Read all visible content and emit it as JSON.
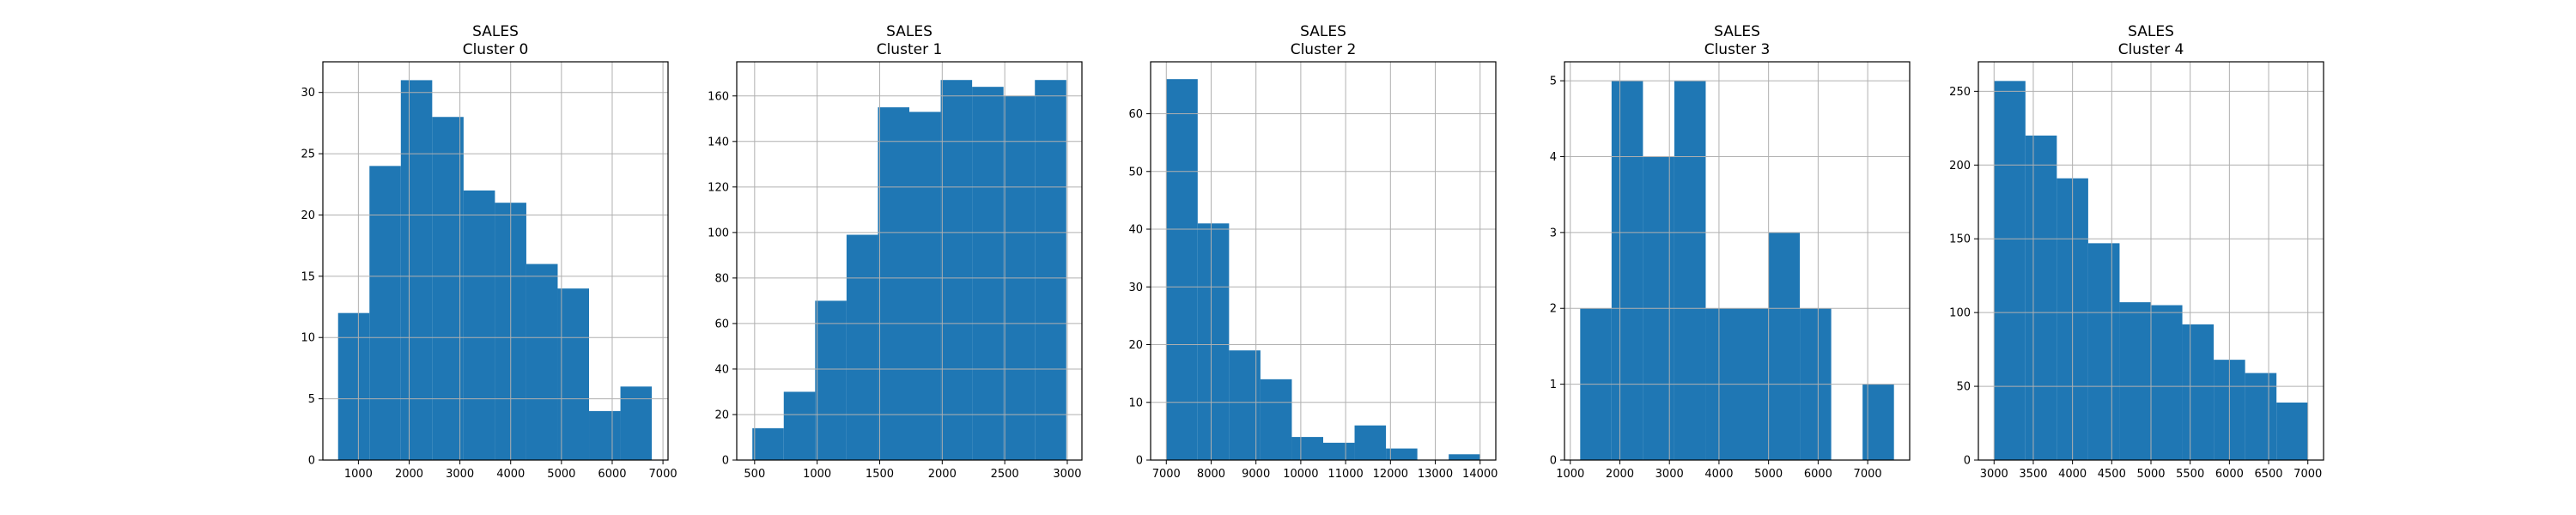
{
  "colors": {
    "bar": "#1f77b4",
    "grid": "#b0b0b0",
    "axis": "#000000"
  },
  "chart_data": [
    {
      "type": "bar",
      "title": "SALES",
      "subtitle": "Cluster 0",
      "grid": true,
      "bin_edges": [
        600,
        1218,
        1836,
        2454,
        3072,
        3690,
        4308,
        4926,
        5544,
        6162,
        6780
      ],
      "values": [
        12,
        24,
        31,
        28,
        22,
        21,
        16,
        14,
        4,
        6
      ],
      "xlim": [
        300,
        7100
      ],
      "ylim": [
        0,
        32.5
      ],
      "xticks": [
        1000,
        2000,
        3000,
        4000,
        5000,
        6000,
        7000
      ],
      "yticks": [
        0,
        5,
        10,
        15,
        20,
        25,
        30
      ]
    },
    {
      "type": "bar",
      "title": "SALES",
      "subtitle": "Cluster 1",
      "grid": true,
      "bin_edges": [
        482,
        733,
        984,
        1235,
        1486,
        1737,
        1988,
        2239,
        2490,
        2741,
        2992
      ],
      "values": [
        14,
        30,
        70,
        99,
        155,
        153,
        167,
        164,
        160,
        167
      ],
      "xlim": [
        357,
        3117
      ],
      "ylim": [
        0,
        175
      ],
      "xticks": [
        500,
        1000,
        1500,
        2000,
        2500,
        3000
      ],
      "yticks": [
        0,
        20,
        40,
        60,
        80,
        100,
        120,
        140,
        160
      ]
    },
    {
      "type": "bar",
      "title": "SALES",
      "subtitle": "Cluster 2",
      "grid": true,
      "bin_edges": [
        7000,
        7700,
        8400,
        9100,
        9800,
        10500,
        11200,
        11900,
        12600,
        13300,
        14000
      ],
      "values": [
        66,
        41,
        19,
        14,
        4,
        3,
        6,
        2,
        0,
        1
      ],
      "xlim": [
        6650,
        14350
      ],
      "ylim": [
        0,
        69
      ],
      "xticks": [
        7000,
        8000,
        9000,
        10000,
        11000,
        12000,
        13000,
        14000
      ],
      "yticks": [
        0,
        10,
        20,
        30,
        40,
        50,
        60
      ]
    },
    {
      "type": "bar",
      "title": "SALES",
      "subtitle": "Cluster 3",
      "grid": true,
      "bin_edges": [
        1200,
        1833,
        2466,
        3099,
        3732,
        4365,
        4998,
        5631,
        6264,
        6897,
        7530
      ],
      "values": [
        2,
        5,
        4,
        5,
        2,
        2,
        3,
        2,
        0,
        1
      ],
      "xlim": [
        883,
        7847
      ],
      "ylim": [
        0,
        5.25
      ],
      "xticks": [
        1000,
        2000,
        3000,
        4000,
        5000,
        6000,
        7000
      ],
      "yticks": [
        0,
        1,
        2,
        3,
        4,
        5
      ]
    },
    {
      "type": "bar",
      "title": "SALES",
      "subtitle": "Cluster 4",
      "grid": true,
      "bin_edges": [
        3000,
        3400,
        3800,
        4200,
        4600,
        5000,
        5400,
        5800,
        6200,
        6600,
        7000
      ],
      "values": [
        257,
        220,
        191,
        147,
        107,
        105,
        92,
        68,
        59,
        39
      ],
      "xlim": [
        2800,
        7200
      ],
      "ylim": [
        0,
        270
      ],
      "xticks": [
        3000,
        3500,
        4000,
        4500,
        5000,
        5500,
        6000,
        6500,
        7000
      ],
      "yticks": [
        0,
        50,
        100,
        150,
        200,
        250
      ]
    }
  ]
}
